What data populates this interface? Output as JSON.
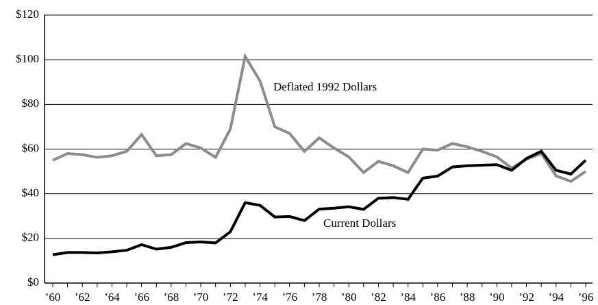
{
  "chart_data": {
    "type": "line",
    "categories": [
      "’60",
      null,
      "’62",
      null,
      "’64",
      null,
      "’66",
      null,
      "’68",
      null,
      "’70",
      null,
      "’72",
      null,
      "’74",
      null,
      "’76",
      null,
      "’78",
      null,
      "’80",
      null,
      "’82",
      null,
      "’84",
      null,
      "’86",
      null,
      "’88",
      null,
      "’90",
      null,
      "’92",
      null,
      "’94",
      null,
      "’96"
    ],
    "series": [
      {
        "name": "Deflated 1992 Dollars",
        "color": "#8c8c8c",
        "values": [
          55,
          58,
          57.5,
          56.3,
          57,
          59,
          66.5,
          57,
          57.5,
          62.5,
          60.5,
          56.3,
          69,
          101.5,
          90.5,
          70,
          67,
          59,
          65,
          60.5,
          56.5,
          49.5,
          54.5,
          52.5,
          49.5,
          60,
          59.5,
          62.5,
          61,
          59,
          56.5,
          51.5,
          55.5,
          58,
          48,
          45.5,
          50
        ]
      },
      {
        "name": "Current Dollars",
        "color": "#000000",
        "values": [
          12.7,
          13.7,
          13.7,
          13.5,
          14,
          14.7,
          17.2,
          15.2,
          16,
          18.1,
          18.4,
          18,
          23,
          36,
          34.8,
          29.6,
          29.8,
          28,
          33.1,
          33.5,
          34.2,
          33,
          38,
          38.3,
          37.5,
          47,
          47.9,
          52,
          52.5,
          52.8,
          53,
          50.5,
          55.8,
          59,
          50.5,
          48.8,
          55
        ]
      }
    ],
    "ylim": [
      0,
      120
    ],
    "yticks": [
      {
        "value": 0,
        "label": "$0"
      },
      {
        "value": 20,
        "label": "$20"
      },
      {
        "value": 40,
        "label": "$40"
      },
      {
        "value": 60,
        "label": "$60"
      },
      {
        "value": 80,
        "label": "$80"
      },
      {
        "value": 100,
        "label": "$100"
      },
      {
        "value": 120,
        "label": "$120"
      }
    ],
    "grid": true
  }
}
